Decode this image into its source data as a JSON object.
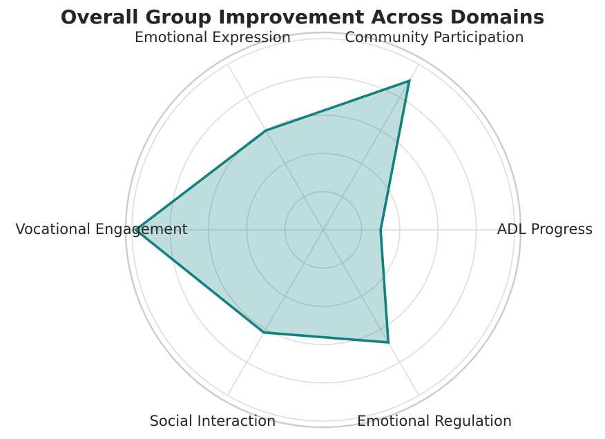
{
  "chart_data": {
    "type": "radar",
    "title": "Overall Group Improvement Across Domains",
    "categories": [
      "ADL Progress",
      "Community Participation",
      "Emotional Expression",
      "Vocational Engagement",
      "Social Interaction",
      "Emotional Regulation"
    ],
    "series": [
      {
        "values": [
          1.5,
          4.5,
          3.0,
          4.9,
          3.1,
          3.4
        ]
      }
    ],
    "rlim": [
      0,
      5
    ],
    "grid": true,
    "line_color": "#128281",
    "fill_color": "#128281"
  }
}
